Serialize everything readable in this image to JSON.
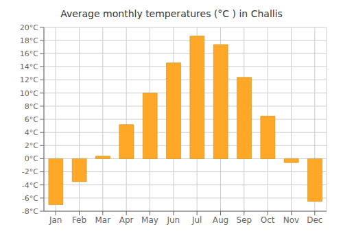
{
  "chart_data": {
    "type": "bar",
    "title": "Average monthly temperatures (°C ) in Challis",
    "categories": [
      "Jan",
      "Feb",
      "Mar",
      "Apr",
      "May",
      "Jun",
      "Jul",
      "Aug",
      "Sep",
      "Oct",
      "Nov",
      "Dec"
    ],
    "values": [
      -7.0,
      -3.5,
      0.4,
      5.2,
      10.0,
      14.6,
      18.7,
      17.4,
      12.4,
      6.5,
      -0.6,
      -6.5
    ],
    "color": "#FFA726",
    "ylim": [
      -8,
      20
    ],
    "yticks": [
      {
        "value": -8,
        "label": "-8°C"
      },
      {
        "value": -6,
        "label": "-6°C"
      },
      {
        "value": -4,
        "label": "-4°C"
      },
      {
        "value": -2,
        "label": "-2°C"
      },
      {
        "value": 0,
        "label": "0°C"
      },
      {
        "value": 2,
        "label": "2°C"
      },
      {
        "value": 4,
        "label": "4°C"
      },
      {
        "value": 6,
        "label": "6°C"
      },
      {
        "value": 8,
        "label": "8°C"
      },
      {
        "value": 10,
        "label": "10°C"
      },
      {
        "value": 12,
        "label": "12°C"
      },
      {
        "value": 14,
        "label": "14°C"
      },
      {
        "value": 16,
        "label": "16°C"
      },
      {
        "value": 18,
        "label": "18°C"
      },
      {
        "value": 20,
        "label": "20°C"
      }
    ],
    "grid": true
  }
}
